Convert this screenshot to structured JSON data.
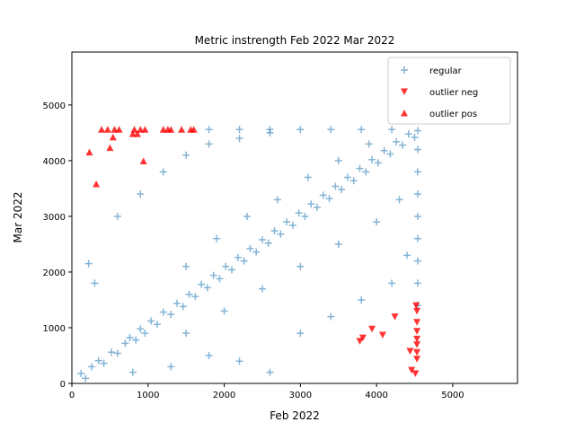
{
  "chart_data": {
    "type": "scatter",
    "title": "Metric instrength Feb 2022 Mar 2022",
    "xlabel": "Feb 2022",
    "ylabel": "Mar 2022",
    "xlim": [
      0,
      5850
    ],
    "ylim": [
      0,
      5950
    ],
    "xticks": [
      0,
      1000,
      2000,
      3000,
      4000,
      5000
    ],
    "yticks": [
      0,
      1000,
      2000,
      3000,
      4000,
      5000
    ],
    "grid": false,
    "legend_position": "upper right",
    "series": [
      {
        "name": "regular",
        "marker": "plus",
        "color": "#1f77b4",
        "description_points": "dense cloud along the diagonal, saturating at about 4550 on both axes",
        "points": [
          [
            120,
            180
          ],
          [
            180,
            90
          ],
          [
            260,
            300
          ],
          [
            350,
            410
          ],
          [
            420,
            360
          ],
          [
            520,
            560
          ],
          [
            600,
            540
          ],
          [
            700,
            720
          ],
          [
            760,
            820
          ],
          [
            840,
            780
          ],
          [
            900,
            980
          ],
          [
            960,
            900
          ],
          [
            1040,
            1120
          ],
          [
            1120,
            1060
          ],
          [
            1200,
            1280
          ],
          [
            1300,
            1240
          ],
          [
            1380,
            1440
          ],
          [
            1460,
            1380
          ],
          [
            1540,
            1600
          ],
          [
            1620,
            1560
          ],
          [
            1700,
            1780
          ],
          [
            1780,
            1720
          ],
          [
            1860,
            1940
          ],
          [
            1940,
            1880
          ],
          [
            2020,
            2100
          ],
          [
            2100,
            2040
          ],
          [
            2180,
            2260
          ],
          [
            2260,
            2200
          ],
          [
            2340,
            2420
          ],
          [
            2420,
            2360
          ],
          [
            2500,
            2580
          ],
          [
            2580,
            2520
          ],
          [
            2660,
            2740
          ],
          [
            2740,
            2680
          ],
          [
            2820,
            2900
          ],
          [
            2900,
            2840
          ],
          [
            2980,
            3060
          ],
          [
            3060,
            3000
          ],
          [
            3140,
            3220
          ],
          [
            3220,
            3160
          ],
          [
            3300,
            3380
          ],
          [
            3380,
            3320
          ],
          [
            3460,
            3540
          ],
          [
            3540,
            3480
          ],
          [
            3620,
            3700
          ],
          [
            3700,
            3640
          ],
          [
            3780,
            3860
          ],
          [
            3860,
            3800
          ],
          [
            3940,
            4020
          ],
          [
            4020,
            3960
          ],
          [
            4100,
            4180
          ],
          [
            4180,
            4120
          ],
          [
            4260,
            4340
          ],
          [
            4340,
            4280
          ],
          [
            4420,
            4480
          ],
          [
            4500,
            4420
          ],
          [
            300,
            1800
          ],
          [
            220,
            2150
          ],
          [
            600,
            3000
          ],
          [
            900,
            3400
          ],
          [
            1200,
            3800
          ],
          [
            1500,
            4100
          ],
          [
            1800,
            4300
          ],
          [
            2200,
            4400
          ],
          [
            2600,
            4500
          ],
          [
            800,
            200
          ],
          [
            1300,
            300
          ],
          [
            1800,
            500
          ],
          [
            2200,
            400
          ],
          [
            2600,
            200
          ],
          [
            3000,
            900
          ],
          [
            3400,
            1200
          ],
          [
            3800,
            1500
          ],
          [
            4200,
            1800
          ],
          [
            4400,
            2300
          ],
          [
            4540,
            4540
          ],
          [
            4540,
            4200
          ],
          [
            4540,
            3800
          ],
          [
            4540,
            3400
          ],
          [
            4540,
            3000
          ],
          [
            4540,
            2600
          ],
          [
            4540,
            2200
          ],
          [
            4540,
            1800
          ],
          [
            4540,
            1400
          ],
          [
            1800,
            4560
          ],
          [
            2200,
            4560
          ],
          [
            2600,
            4560
          ],
          [
            3000,
            4560
          ],
          [
            3400,
            4560
          ],
          [
            3800,
            4560
          ],
          [
            4200,
            4560
          ],
          [
            1500,
            2100
          ],
          [
            1900,
            2600
          ],
          [
            2300,
            3000
          ],
          [
            2700,
            3300
          ],
          [
            3100,
            3700
          ],
          [
            3500,
            4000
          ],
          [
            3900,
            4300
          ],
          [
            1500,
            900
          ],
          [
            2000,
            1300
          ],
          [
            2500,
            1700
          ],
          [
            3000,
            2100
          ],
          [
            3500,
            2500
          ],
          [
            4000,
            2900
          ],
          [
            4300,
            3300
          ]
        ]
      },
      {
        "name": "outlier neg",
        "marker": "triangle_down",
        "color": "#ff0000",
        "points": [
          [
            3780,
            760
          ],
          [
            3820,
            820
          ],
          [
            3940,
            980
          ],
          [
            4080,
            870
          ],
          [
            4240,
            1200
          ],
          [
            4440,
            580
          ],
          [
            4460,
            240
          ],
          [
            4510,
            180
          ],
          [
            4520,
            1400
          ],
          [
            4530,
            1100
          ],
          [
            4530,
            940
          ],
          [
            4530,
            800
          ],
          [
            4530,
            700
          ],
          [
            4530,
            560
          ],
          [
            4530,
            440
          ],
          [
            4530,
            1300
          ]
        ]
      },
      {
        "name": "outlier pos",
        "marker": "triangle_up",
        "color": "#ff0000",
        "points": [
          [
            230,
            4150
          ],
          [
            320,
            3580
          ],
          [
            390,
            4560
          ],
          [
            470,
            4560
          ],
          [
            500,
            4230
          ],
          [
            540,
            4420
          ],
          [
            560,
            4560
          ],
          [
            620,
            4560
          ],
          [
            800,
            4480
          ],
          [
            820,
            4560
          ],
          [
            860,
            4480
          ],
          [
            900,
            4560
          ],
          [
            940,
            3990
          ],
          [
            960,
            4560
          ],
          [
            1200,
            4560
          ],
          [
            1260,
            4560
          ],
          [
            1300,
            4560
          ],
          [
            1440,
            4560
          ],
          [
            1560,
            4560
          ],
          [
            1600,
            4560
          ]
        ]
      }
    ]
  }
}
